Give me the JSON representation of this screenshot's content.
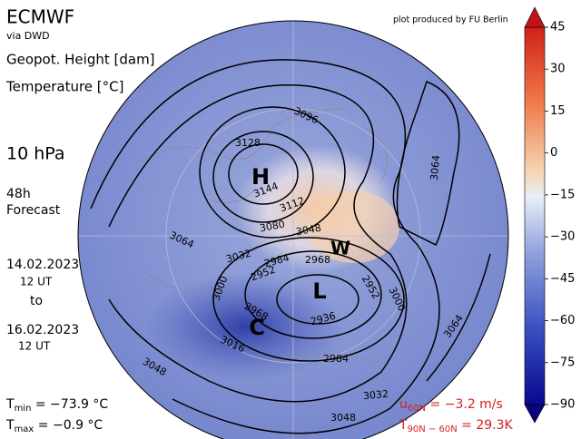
{
  "header": {
    "model": "ECMWF",
    "source": "via DWD",
    "field1": "Geopot. Height [dam]",
    "field2": "Temperature [°C]",
    "level": "10 hPa",
    "lead": "48h",
    "kind": "Forecast",
    "from_date": "14.02.2023",
    "from_time": "12 UT",
    "to": "to",
    "to_date": "16.02.2023",
    "to_time": "12 UT",
    "credit": "plot produced by FU Berlin"
  },
  "stats": {
    "tmin": {
      "symbol": "T",
      "sub": "min",
      "text": " = −73.9 °C"
    },
    "tmax": {
      "symbol": "T",
      "sub": "max",
      "text": " = −0.9 °C"
    },
    "u60": {
      "symbol": "u",
      "sub": "60N",
      "text": " = −3.2 m/s"
    },
    "t9060": {
      "symbol": "T",
      "sub": "90N − 60N",
      "text": " = 29.3K"
    }
  },
  "map": {
    "centers": [
      "H",
      "L",
      "W",
      "C"
    ],
    "contour_labels": [
      3096,
      3128,
      3144,
      3112,
      3080,
      3048,
      3064,
      3032,
      2984,
      2968,
      3000,
      2952,
      2952,
      3000,
      2936,
      2968,
      3016,
      2984,
      3032,
      3048,
      3048,
      3064,
      3064
    ]
  },
  "colorbar": {
    "lim": [
      -90,
      45
    ],
    "ticks": [
      {
        "value": 45,
        "label": "45"
      },
      {
        "value": 30,
        "label": "30"
      },
      {
        "value": 15,
        "label": "15"
      },
      {
        "value": 0,
        "label": "0"
      },
      {
        "value": -15,
        "label": "−15"
      },
      {
        "value": -30,
        "label": "−30"
      },
      {
        "value": -45,
        "label": "−45"
      },
      {
        "value": -60,
        "label": "−60"
      },
      {
        "value": -75,
        "label": "−75"
      },
      {
        "value": -90,
        "label": "−90"
      }
    ]
  }
}
